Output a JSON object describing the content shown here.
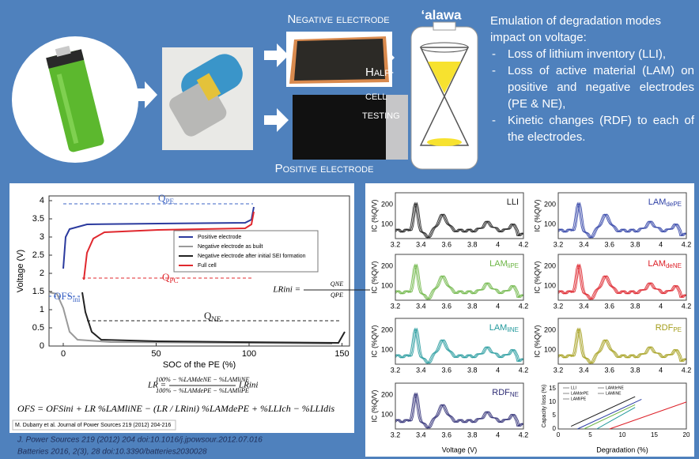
{
  "top": {
    "negative_label": "Negative electrode",
    "positive_label": "Positive electrode",
    "half_cell_lines": [
      "Half-",
      "cell",
      "testing"
    ],
    "brand": "‘alawa",
    "description": {
      "intro": "Emulation of degradation modes impact on voltage:",
      "items": [
        "Loss of lithium inventory (LLI),",
        "Loss of active material (LAM) on positive and negative electrodes (PE & NE),",
        "Kinetic changes (RDF) to each of the electrodes."
      ]
    }
  },
  "left_figure": {
    "y_label": "Voltage (V)",
    "x_label": "SOC of the PE (%)",
    "yticks": [
      0,
      0.5,
      1,
      1.5,
      2,
      2.5,
      3,
      3.5,
      4
    ],
    "xticks": [
      0,
      50,
      100,
      150
    ],
    "legend": [
      {
        "name": "Positive electrode",
        "color": "#2b3a9e"
      },
      {
        "name": "Negative electrode as built",
        "color": "#9a9a9a"
      },
      {
        "name": "Negative electrode after initial SEI formation",
        "color": "#222222"
      },
      {
        "name": "Full cell",
        "color": "#e0282e"
      }
    ],
    "q_pe": {
      "main": "Q",
      "sub": "PE"
    },
    "q_pc": {
      "main": "Q",
      "sub": "PC"
    },
    "q_ne": {
      "main": "Q",
      "sub": "NE"
    },
    "ofs_ini": {
      "main": "OFS",
      "sub": "ini"
    },
    "lr_ini": {
      "lhs": "LRini =",
      "num": "QNE",
      "den": "QPE"
    },
    "lr_equation": {
      "lhs": "LR =",
      "num": "100% − %LAMdeNE − %LAMliNE",
      "den": "100% − %LAMdePE − %LAMliPE",
      "rhs": "LRini"
    },
    "ofs_equation": "OFS = OFSini + LR %LAMliNE − (LR / LRini) %LAMdePE + %LLIch − %LLIdis",
    "citation": "M. Dubarry et al.  Journal of Power Sources 219 (2012) 204-216"
  },
  "references": [
    "J. Power Sources 219 (2012) 204  doi:10.1016/j.jpowsour.2012.07.016",
    "Batteries 2016, 2(3), 28  doi:10.3390/batteries2030028"
  ],
  "right_figure": {
    "ic_label": "IC (%Q/V)",
    "voltage_label": "Voltage (V)",
    "ic_yticks": [
      100,
      200
    ],
    "ic_xticks": [
      3.2,
      3.4,
      3.6,
      3.8,
      4,
      4.2
    ],
    "panels": [
      {
        "label": "LLI",
        "sub": null,
        "color": "#1a1a1a"
      },
      {
        "label": "LAM",
        "sub": "dePE",
        "color": "#2e40a6"
      },
      {
        "label": "LAM",
        "sub": "liPE",
        "color": "#6cb544"
      },
      {
        "label": "LAM",
        "sub": "deNE",
        "color": "#dd2028"
      },
      {
        "label": "LAM",
        "sub": "liNE",
        "color": "#22999c"
      },
      {
        "label": "RDF",
        "sub": "PE",
        "color": "#a39d1a"
      },
      {
        "label": "RDF",
        "sub": "NE",
        "color": "#2d2b74"
      }
    ],
    "capacity": {
      "y_label": "Capacity loss (%)",
      "x_label": "Degradation (%)",
      "xticks": [
        0,
        5,
        10,
        15,
        20
      ],
      "yticks": [
        0,
        5,
        10,
        15
      ],
      "legend": [
        "LLI",
        "LAMdePE",
        "LAMliPE",
        "LAMdeNE",
        "LAMliNE"
      ]
    }
  }
}
